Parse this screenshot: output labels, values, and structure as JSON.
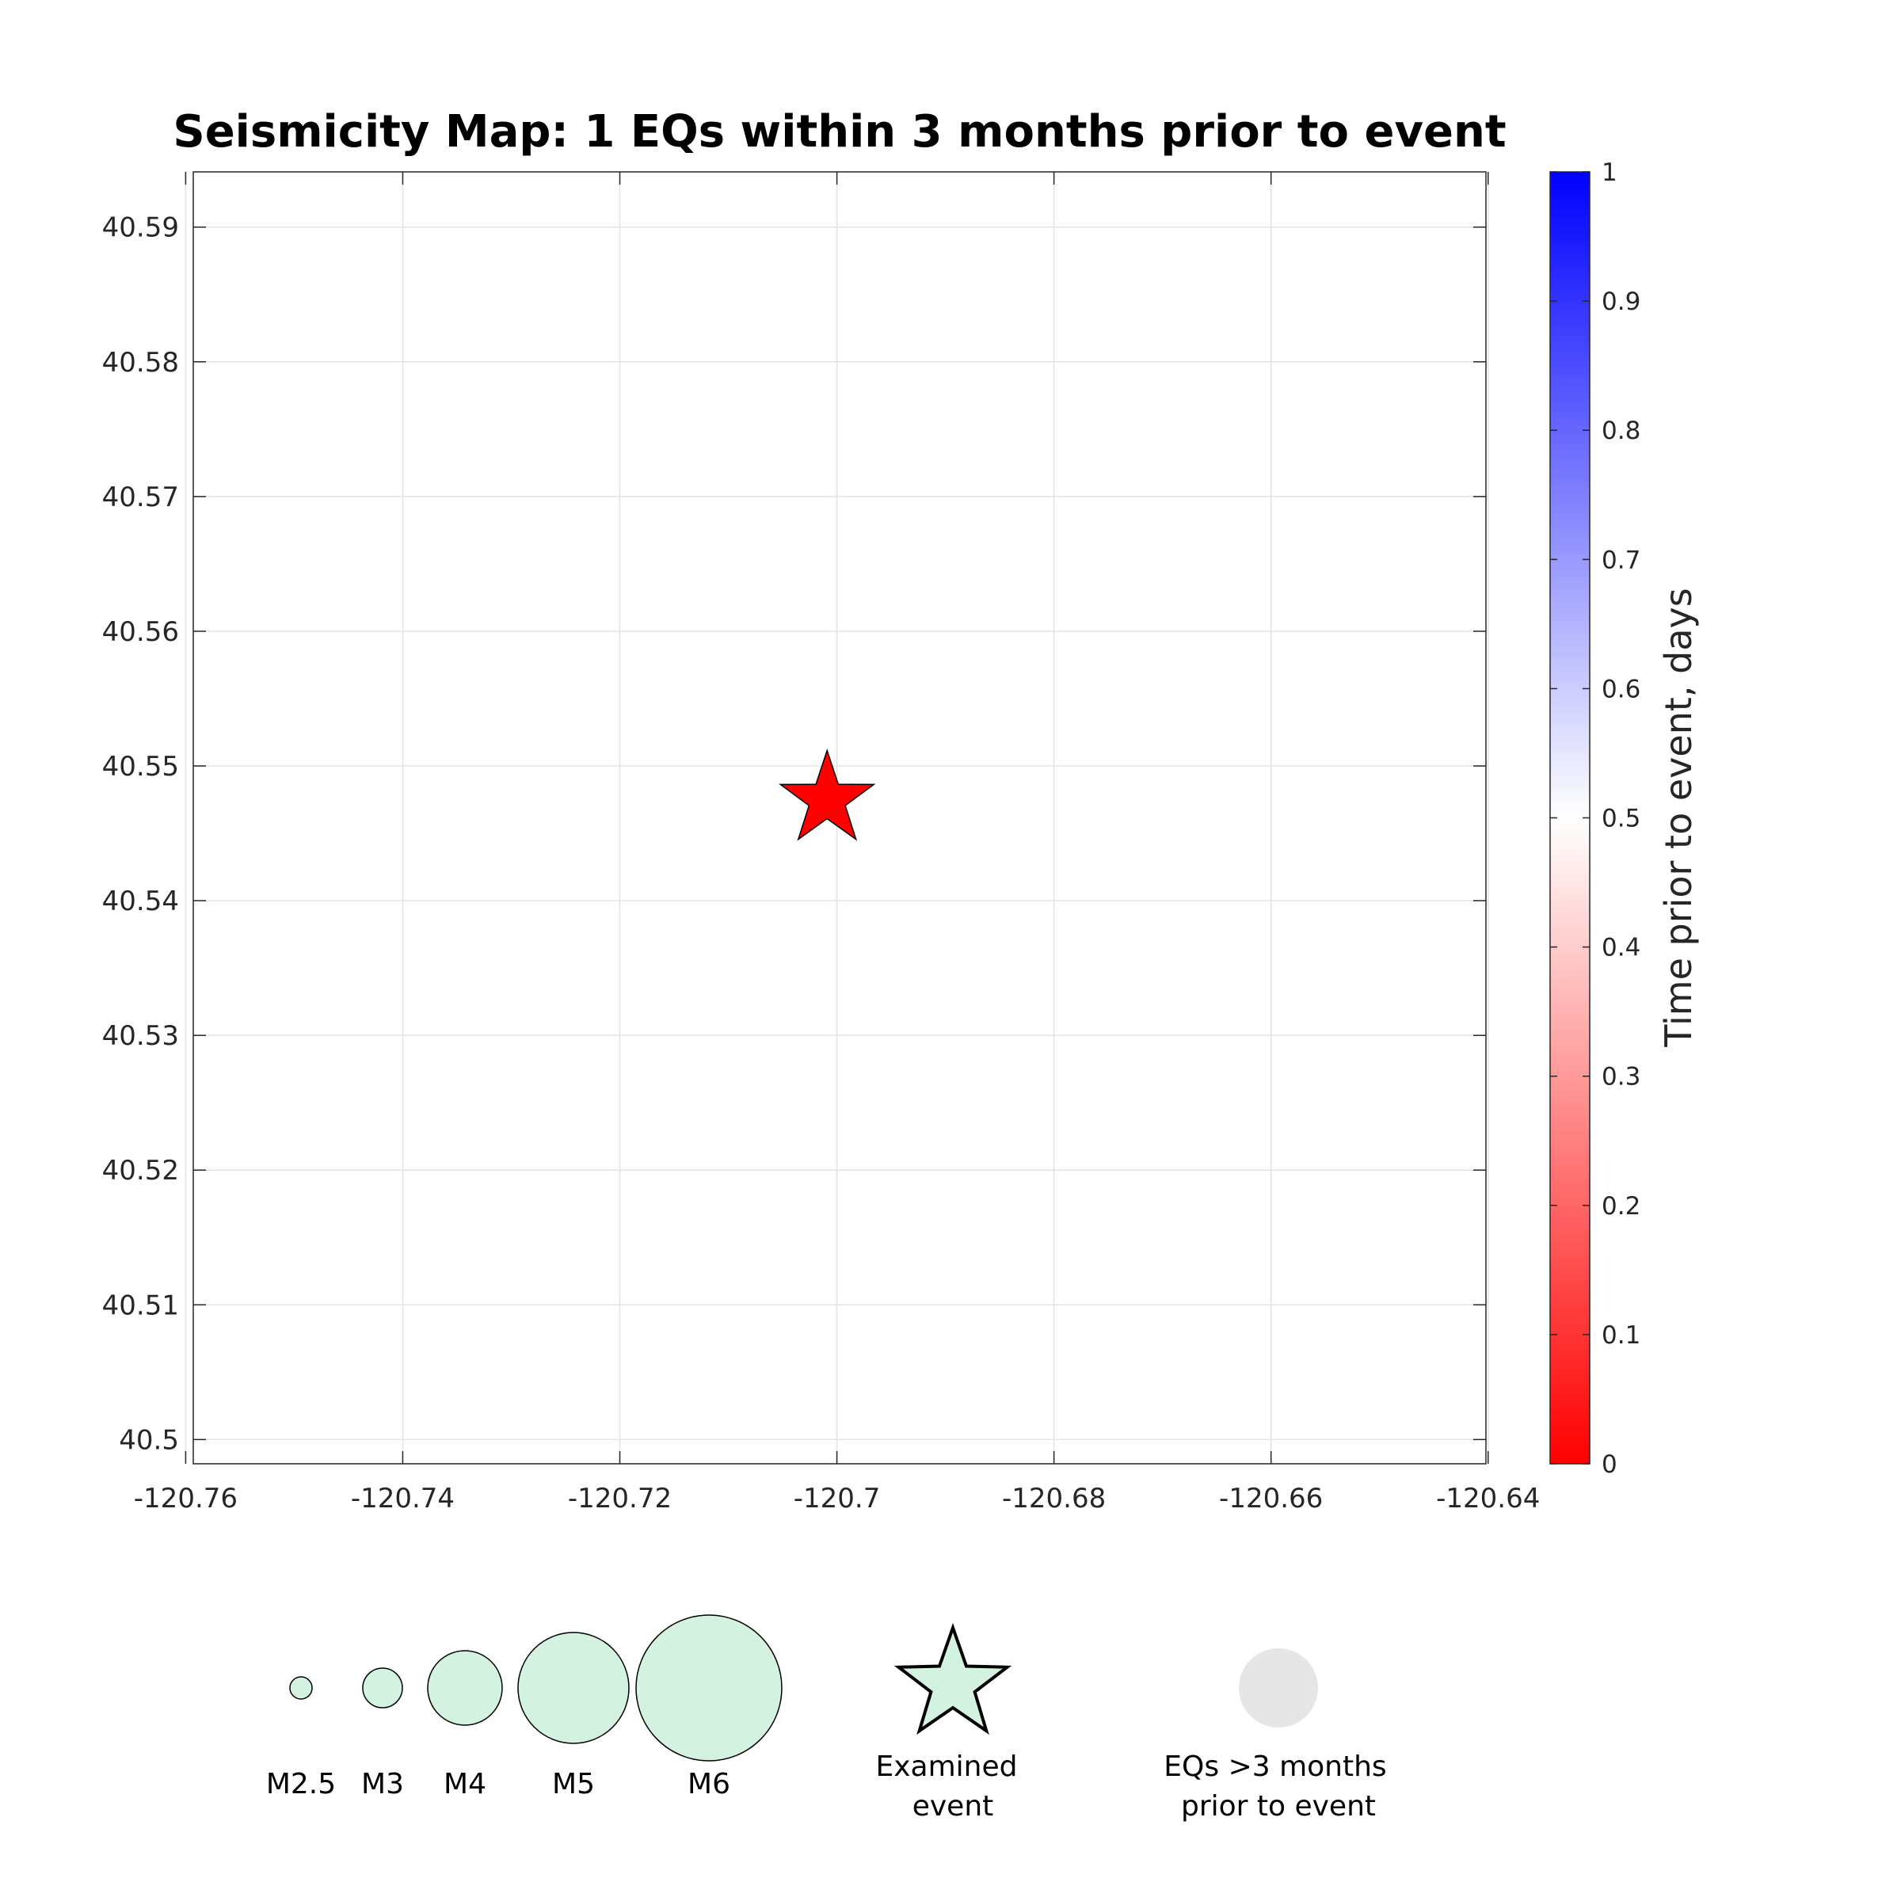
{
  "chart_data": {
    "type": "scatter",
    "title": "Seismicity Map: 1 EQs within 3 months prior to event",
    "xlim": [
      -120.7593,
      -120.6402
    ],
    "ylim": [
      40.4982,
      40.5941
    ],
    "xticks": [
      "-120.76",
      "-120.74",
      "-120.72",
      "-120.7",
      "-120.68",
      "-120.66",
      "-120.64"
    ],
    "xtick_values": [
      -120.76,
      -120.74,
      -120.72,
      -120.7,
      -120.68,
      -120.66,
      -120.64
    ],
    "yticks": [
      "40.5",
      "40.51",
      "40.52",
      "40.53",
      "40.54",
      "40.55",
      "40.56",
      "40.57",
      "40.58",
      "40.59"
    ],
    "ytick_values": [
      40.5,
      40.51,
      40.52,
      40.53,
      40.54,
      40.55,
      40.56,
      40.57,
      40.58,
      40.59
    ],
    "grid": true,
    "points": [
      {
        "x": -120.7009,
        "y": 40.5475,
        "marker": "star",
        "color": "#ff0000"
      }
    ],
    "colorbar": {
      "label": "Time prior to event, days",
      "range": [
        0,
        1
      ],
      "ticks": [
        "0",
        "0.1",
        "0.2",
        "0.3",
        "0.4",
        "0.5",
        "0.6",
        "0.7",
        "0.8",
        "0.9",
        "1"
      ],
      "colormap": [
        "#ff0000",
        "#ffffff",
        "#0000ff"
      ]
    },
    "legend": {
      "placement": "bottom",
      "magnitudes": [
        {
          "label": "M2.5"
        },
        {
          "label": "M3"
        },
        {
          "label": "M4"
        },
        {
          "label": "M5"
        },
        {
          "label": "M6"
        }
      ],
      "magnitude_color": "#d4f2e0",
      "examined_event": [
        "Examined",
        "event"
      ],
      "older_eqs": [
        "EQs >3 months",
        "prior to event"
      ],
      "older_color": "#e6e6e6"
    }
  }
}
